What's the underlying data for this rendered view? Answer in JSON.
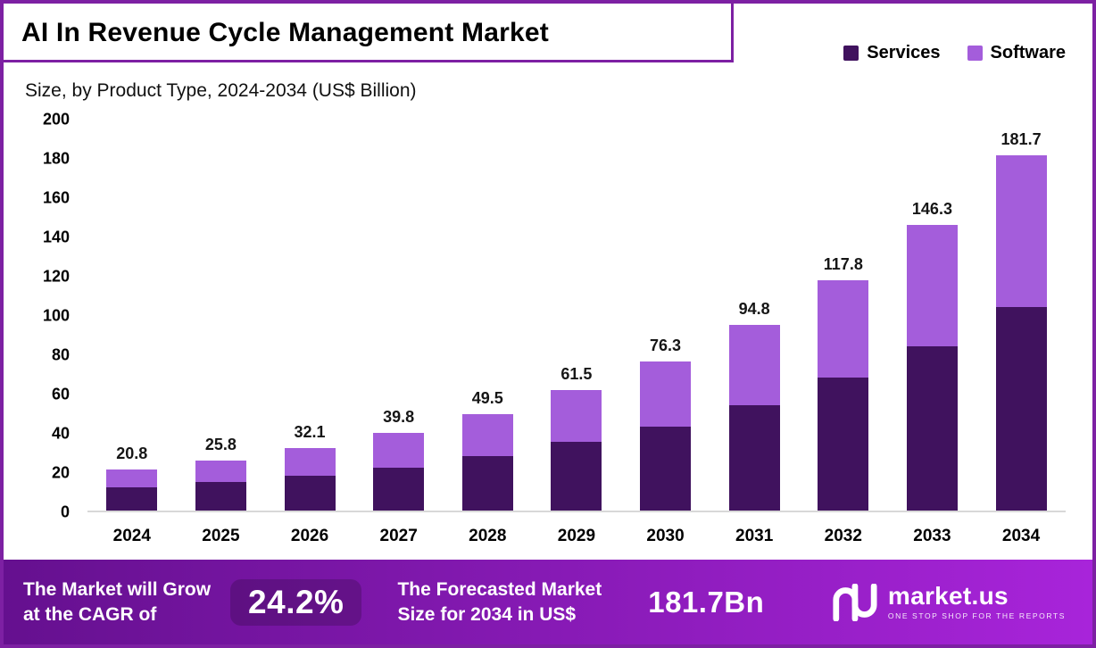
{
  "header": {
    "title": "AI In Revenue Cycle Management Market",
    "subtitle": "Size, by Product Type, 2024-2034 (US$ Billion)"
  },
  "legend": [
    {
      "label": "Services",
      "color": "#40125e"
    },
    {
      "label": "Software",
      "color": "#a45ddb"
    }
  ],
  "colors": {
    "accent": "#7d20a3",
    "footer_gradient_start": "#65108f",
    "footer_gradient_end": "#a824da",
    "services": "#40125e",
    "software": "#a45ddb"
  },
  "chart_data": {
    "type": "bar",
    "stacked": true,
    "title": "AI In Revenue Cycle Management Market Size, by Product Type, 2024-2034 (US$ Billion)",
    "categories": [
      "2024",
      "2025",
      "2026",
      "2027",
      "2028",
      "2029",
      "2030",
      "2031",
      "2032",
      "2033",
      "2034"
    ],
    "series": [
      {
        "name": "Services",
        "color": "#40125e",
        "values": [
          12,
          14.5,
          18,
          22,
          28,
          35,
          43,
          54,
          68,
          84,
          104
        ]
      },
      {
        "name": "Software",
        "color": "#a45ddb",
        "values": [
          8.8,
          11.3,
          14.1,
          17.8,
          21.5,
          26.5,
          33.3,
          40.8,
          49.8,
          62.3,
          77.7
        ]
      }
    ],
    "totals": [
      "20.8",
      "25.8",
      "32.1",
      "39.8",
      "49.5",
      "61.5",
      "76.3",
      "94.8",
      "117.8",
      "146.3",
      "181.7"
    ],
    "xlabel": "",
    "ylabel": "",
    "ylim": [
      0,
      200
    ],
    "yticks": [
      0,
      20,
      40,
      60,
      80,
      100,
      120,
      140,
      160,
      180,
      200
    ],
    "legend_position": "top-right",
    "grid": false
  },
  "footer": {
    "cagr_line1": "The Market will Grow",
    "cagr_line2": "at the CAGR of",
    "cagr_value": "24.2%",
    "forecast_line1": "The Forecasted Market",
    "forecast_line2": "Size for 2034 in US$",
    "forecast_value": "181.7Bn",
    "brand_name": "market.us",
    "brand_tagline": "ONE STOP SHOP FOR THE REPORTS"
  }
}
